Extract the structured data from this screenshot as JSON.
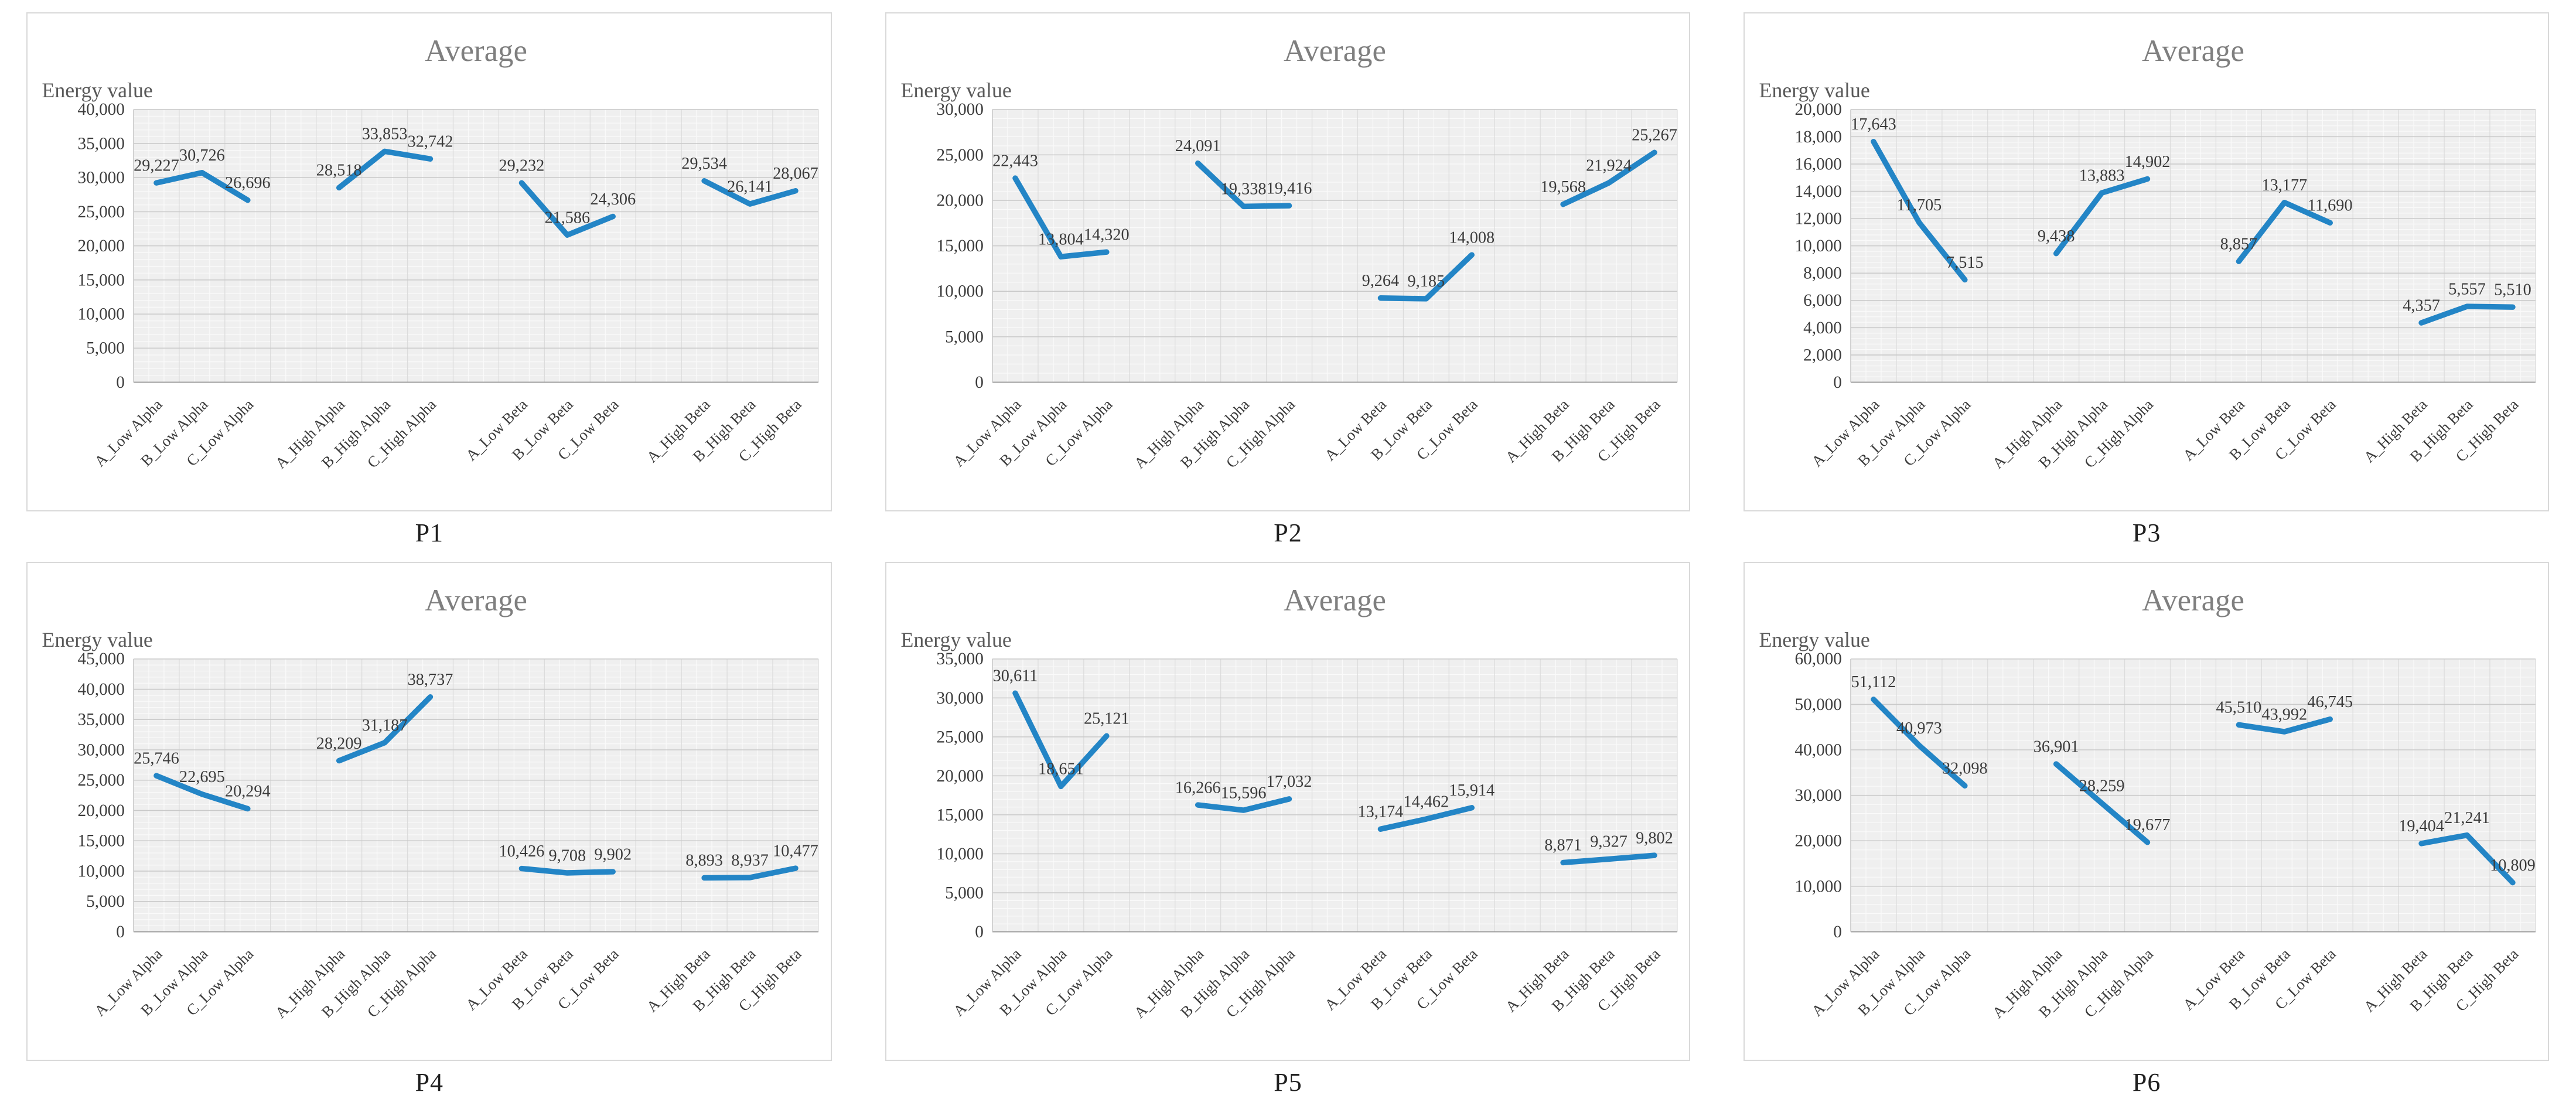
{
  "colors": {
    "series_line": "#2385c6",
    "chart_title": "#7f7f7f",
    "axis_label": "#595959",
    "tick_text": "#3b3b3b",
    "data_label_text": "#3b3b3b",
    "major_gridline": "#c9c9c9",
    "minor_gridline": "#fafafa",
    "slot_gridline": "#dcdcdc",
    "zero_axis": "#a0a0a0",
    "plot_background": "#efefef",
    "chart_border": "#d9d9d9"
  },
  "chart_data": [
    {
      "type": "line",
      "caption": "P1",
      "title": "Average",
      "ylabel": "Energy value",
      "xlabel": "",
      "categories": [
        "A_Low Alpha",
        "B_Low Alpha",
        "C_Low Alpha",
        "A_High Alpha",
        "B_High Alpha",
        "C_High Alpha",
        "A_Low Beta",
        "B_Low Beta",
        "C_Low Beta",
        "A_High Beta",
        "B_High Beta",
        "C_High Beta"
      ],
      "values": [
        29227,
        30726,
        26696,
        28518,
        33853,
        32742,
        29232,
        21586,
        24306,
        29534,
        26141,
        28067
      ],
      "data_labels": [
        "29,227",
        "30,726",
        "26,696",
        "28,518",
        "33,853",
        "32,742",
        "29,232",
        "21,586",
        "24,306",
        "29,534",
        "26,141",
        "28,067"
      ],
      "ylim": [
        0,
        40000
      ],
      "ytick_step": 5000,
      "yticks": [
        "0",
        "5,000",
        "10,000",
        "15,000",
        "20,000",
        "25,000",
        "30,000",
        "35,000",
        "40,000"
      ],
      "group_size": 3,
      "grid": true,
      "legend": "none"
    },
    {
      "type": "line",
      "caption": "P2",
      "title": "Average",
      "ylabel": "Energy value",
      "xlabel": "",
      "categories": [
        "A_Low Alpha",
        "B_Low Alpha",
        "C_Low Alpha",
        "A_High Alpha",
        "B_High Alpha",
        "C_High Alpha",
        "A_Low Beta",
        "B_Low Beta",
        "C_Low Beta",
        "A_High Beta",
        "B_High Beta",
        "C_High Beta"
      ],
      "values": [
        22443,
        13804,
        14320,
        24091,
        19338,
        19416,
        9264,
        9185,
        14008,
        19568,
        21924,
        25267
      ],
      "data_labels": [
        "22,443",
        "13,804",
        "14,320",
        "24,091",
        "19,338",
        "19,416",
        "9,264",
        "9,185",
        "14,008",
        "19,568",
        "21,924",
        "25,267"
      ],
      "ylim": [
        0,
        30000
      ],
      "ytick_step": 5000,
      "yticks": [
        "0",
        "5,000",
        "10,000",
        "15,000",
        "20,000",
        "25,000",
        "30,000"
      ],
      "group_size": 3,
      "grid": true,
      "legend": "none"
    },
    {
      "type": "line",
      "caption": "P3",
      "title": "Average",
      "ylabel": "Energy value",
      "xlabel": "",
      "categories": [
        "A_Low Alpha",
        "B_Low Alpha",
        "C_Low Alpha",
        "A_High Alpha",
        "B_High Alpha",
        "C_High Alpha",
        "A_Low Beta",
        "B_Low Beta",
        "C_Low Beta",
        "A_High Beta",
        "B_High Beta",
        "C_High Beta"
      ],
      "values": [
        17643,
        11705,
        7515,
        9438,
        13883,
        14902,
        8857,
        13177,
        11690,
        4357,
        5557,
        5510
      ],
      "data_labels": [
        "17,643",
        "11,705",
        "7,515",
        "9,438",
        "13,883",
        "14,902",
        "8,857",
        "13,177",
        "11,690",
        "4,357",
        "5,557",
        "5,510"
      ],
      "ylim": [
        0,
        20000
      ],
      "ytick_step": 2000,
      "yticks": [
        "0",
        "2,000",
        "4,000",
        "6,000",
        "8,000",
        "10,000",
        "12,000",
        "14,000",
        "16,000",
        "18,000",
        "20,000"
      ],
      "group_size": 3,
      "grid": true,
      "legend": "none"
    },
    {
      "type": "line",
      "caption": "P4",
      "title": "Average",
      "ylabel": "Energy value",
      "xlabel": "",
      "categories": [
        "A_Low Alpha",
        "B_Low Alpha",
        "C_Low Alpha",
        "A_High Alpha",
        "B_High Alpha",
        "C_High Alpha",
        "A_Low Beta",
        "B_Low Beta",
        "C_Low Beta",
        "A_High Beta",
        "B_High Beta",
        "C_High Beta"
      ],
      "values": [
        25746,
        22695,
        20294,
        28209,
        31187,
        38737,
        10426,
        9708,
        9902,
        8893,
        8937,
        10477
      ],
      "data_labels": [
        "25,746",
        "22,695",
        "20,294",
        "28,209",
        "31,187",
        "38,737",
        "10,426",
        "9,708",
        "9,902",
        "8,893",
        "8,937",
        "10,477"
      ],
      "ylim": [
        0,
        45000
      ],
      "ytick_step": 5000,
      "yticks": [
        "0",
        "5,000",
        "10,000",
        "15,000",
        "20,000",
        "25,000",
        "30,000",
        "35,000",
        "40,000",
        "45,000"
      ],
      "group_size": 3,
      "grid": true,
      "legend": "none"
    },
    {
      "type": "line",
      "caption": "P5",
      "title": "Average",
      "ylabel": "Energy value",
      "xlabel": "",
      "categories": [
        "A_Low Alpha",
        "B_Low Alpha",
        "C_Low Alpha",
        "A_High Alpha",
        "B_High Alpha",
        "C_High Alpha",
        "A_Low Beta",
        "B_Low Beta",
        "C_Low Beta",
        "A_High Beta",
        "B_High Beta",
        "C_High Beta"
      ],
      "values": [
        30611,
        18651,
        25121,
        16266,
        15596,
        17032,
        13174,
        14462,
        15914,
        8871,
        9327,
        9802
      ],
      "data_labels": [
        "30,611",
        "18,651",
        "25,121",
        "16,266",
        "15,596",
        "17,032",
        "13,174",
        "14,462",
        "15,914",
        "8,871",
        "9,327",
        "9,802"
      ],
      "ylim": [
        0,
        35000
      ],
      "ytick_step": 5000,
      "yticks": [
        "0",
        "5,000",
        "10,000",
        "15,000",
        "20,000",
        "25,000",
        "30,000",
        "35,000"
      ],
      "group_size": 3,
      "grid": true,
      "legend": "none"
    },
    {
      "type": "line",
      "caption": "P6",
      "title": "Average",
      "ylabel": "Energy value",
      "xlabel": "",
      "categories": [
        "A_Low Alpha",
        "B_Low Alpha",
        "C_Low Alpha",
        "A_High Alpha",
        "B_High Alpha",
        "C_High Alpha",
        "A_Low Beta",
        "B_Low Beta",
        "C_Low Beta",
        "A_High Beta",
        "B_High Beta",
        "C_High Beta"
      ],
      "values": [
        51112,
        40973,
        32098,
        36901,
        28259,
        19677,
        45510,
        43992,
        46745,
        19404,
        21241,
        10809
      ],
      "data_labels": [
        "51,112",
        "40,973",
        "32,098",
        "36,901",
        "28,259",
        "19,677",
        "45,510",
        "43,992",
        "46,745",
        "19,404",
        "21,241",
        "10,809"
      ],
      "ylim": [
        0,
        60000
      ],
      "ytick_step": 10000,
      "yticks": [
        "0",
        "10,000",
        "20,000",
        "30,000",
        "40,000",
        "50,000",
        "60,000"
      ],
      "group_size": 3,
      "grid": true,
      "legend": "none"
    }
  ]
}
